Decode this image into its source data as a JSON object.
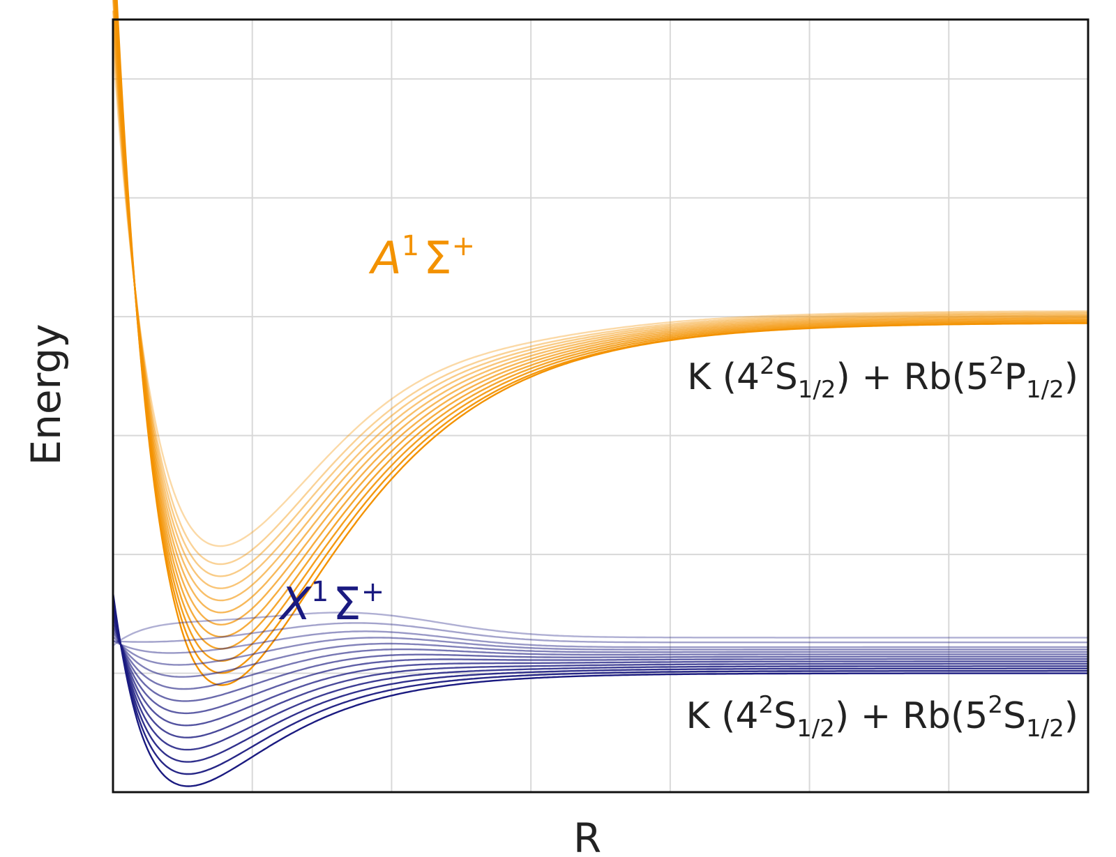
{
  "chart_data": {
    "type": "line",
    "xlabel": "R",
    "ylabel": "Energy",
    "xlim": [
      0,
      7
    ],
    "ylim": [
      0,
      6.5
    ],
    "grid": true,
    "tick_labels_shown": false,
    "series": [
      {
        "group": "upper",
        "color": "#f39200",
        "well_minima": [
          0.9,
          1.0,
          1.1,
          1.2,
          1.3,
          1.4,
          1.5,
          1.6,
          1.7,
          1.8,
          1.9,
          2.05
        ],
        "plateau_levels": [
          3.95,
          3.95,
          3.96,
          3.97,
          3.98,
          3.99,
          4.0,
          4.01,
          4.02,
          4.03,
          4.04,
          4.05
        ],
        "well_position": 0.78,
        "asymptote": 3.93
      },
      {
        "group": "lower",
        "color": "#1a1a80",
        "well_minima": [
          0.05,
          0.15,
          0.25,
          0.35,
          0.45,
          0.55,
          0.65,
          0.75,
          0.85,
          0.95,
          1.05,
          1.15,
          1.25,
          1.4
        ],
        "plateau_levels": [
          1.0,
          1.02,
          1.04,
          1.06,
          1.08,
          1.1,
          1.12,
          1.14,
          1.16,
          1.18,
          1.2,
          1.22,
          1.26,
          1.3
        ],
        "well_position": 0.54,
        "asymptote": 1.0
      }
    ],
    "annotations": {
      "upper_state": {
        "base": "A",
        "sup": "1",
        "sym": "Σ",
        "sym_sup": "+",
        "color": "#f39200"
      },
      "lower_state": {
        "base": "X",
        "sup": "1",
        "sym": "Σ",
        "sym_sup": "+",
        "color": "#1a1a80"
      },
      "upper_asymptote": {
        "atom1": "K",
        "n1": "4",
        "sup1": "2",
        "term1": "S",
        "j1": "1/2",
        "plus": "+",
        "atom2": "Rb",
        "n2": "5",
        "sup2": "2",
        "term2": "P",
        "j2": "1/2"
      },
      "lower_asymptote": {
        "atom1": "K",
        "n1": "4",
        "sup1": "2",
        "term1": "S",
        "j1": "1/2",
        "plus": "+",
        "atom2": "Rb",
        "n2": "5",
        "sup2": "2",
        "term2": "S",
        "j2": "1/2"
      }
    }
  }
}
